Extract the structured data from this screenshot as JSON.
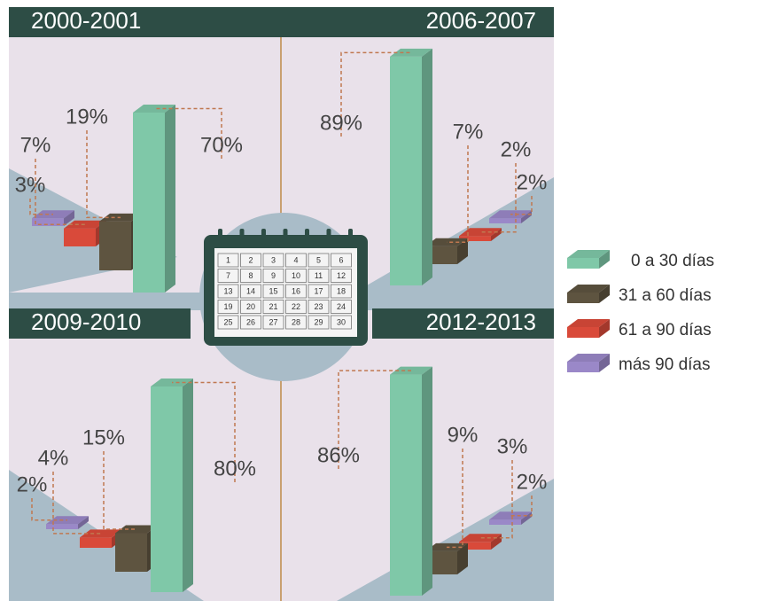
{
  "legend": {
    "names": [
      "0 a 30 días",
      "31 a 60 días",
      "61 a 90 días",
      "más 90 días"
    ],
    "colors": [
      "#7fc8a8",
      "#5e5440",
      "#d94a3a",
      "#9a88c8"
    ]
  },
  "calendar": {
    "days": [
      1,
      2,
      3,
      4,
      5,
      6,
      7,
      8,
      9,
      10,
      11,
      12,
      13,
      14,
      15,
      16,
      17,
      18,
      19,
      20,
      21,
      22,
      23,
      24,
      25,
      26,
      27,
      28,
      29,
      30
    ]
  },
  "chart_data": [
    {
      "type": "bar3d",
      "title": "2000-2001",
      "values": [
        70,
        19,
        7,
        3
      ],
      "value_labels": [
        "70%",
        "19%",
        "7%",
        "3%"
      ]
    },
    {
      "type": "bar3d",
      "title": "2006-2007",
      "values": [
        89,
        7,
        2,
        2
      ],
      "value_labels": [
        "89%",
        "7%",
        "2%",
        "2%"
      ]
    },
    {
      "type": "bar3d",
      "title": "2009-2010",
      "values": [
        80,
        15,
        4,
        2
      ],
      "value_labels": [
        "80%",
        "15%",
        "4%",
        "2%"
      ]
    },
    {
      "type": "bar3d",
      "title": "2012-2013",
      "values": [
        86,
        9,
        3,
        2
      ],
      "value_labels": [
        "86%",
        "9%",
        "3%",
        "2%"
      ]
    }
  ]
}
